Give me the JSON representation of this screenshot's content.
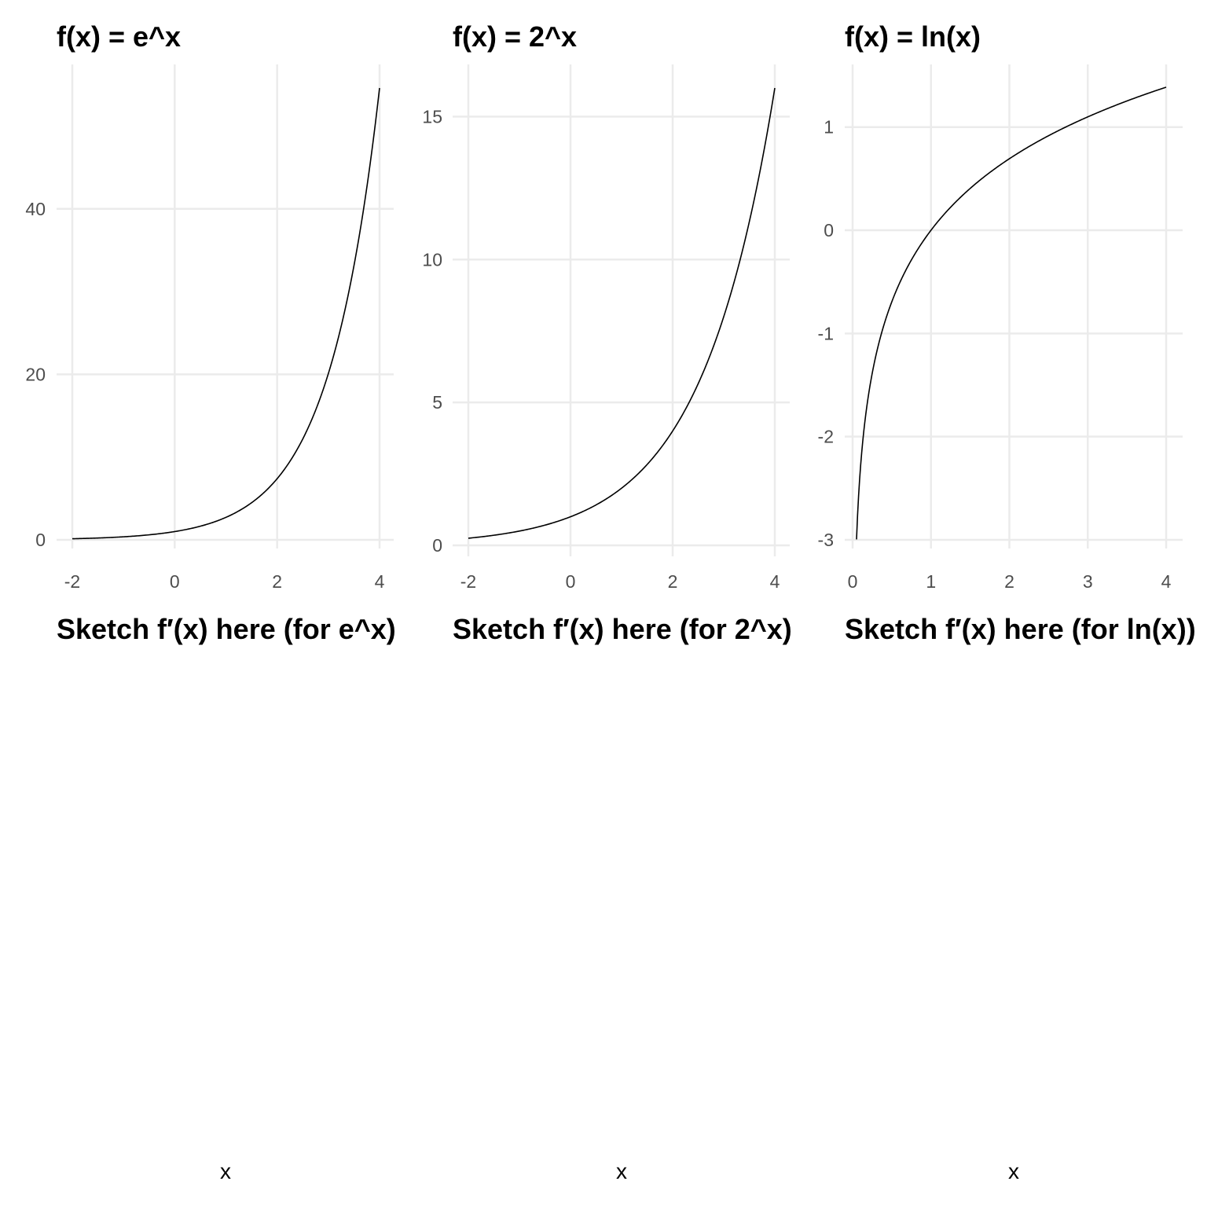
{
  "chart_data": [
    {
      "type": "line",
      "title": "f(x) = e^x",
      "function": "exp",
      "xlim": [
        -2,
        4
      ],
      "ylim": [
        0,
        54.6
      ],
      "x_ticks": [
        -2,
        0,
        2,
        4
      ],
      "x_tick_labels": [
        "-2",
        "0",
        "2",
        "4"
      ],
      "y_ticks": [
        0,
        20,
        40
      ],
      "y_tick_labels": [
        "0",
        "20",
        "40"
      ],
      "series": [
        {
          "x": [
            -2,
            -1,
            0,
            1,
            2,
            2.5,
            3,
            3.5,
            4
          ],
          "y": [
            0.135,
            0.368,
            1,
            2.718,
            7.389,
            12.18,
            20.09,
            33.12,
            54.6
          ]
        }
      ],
      "grid": true
    },
    {
      "type": "line",
      "title": "f(x) = 2^x",
      "function": "pow2",
      "xlim": [
        -2,
        4
      ],
      "ylim": [
        0,
        16
      ],
      "x_ticks": [
        -2,
        0,
        2,
        4
      ],
      "x_tick_labels": [
        "-2",
        "0",
        "2",
        "4"
      ],
      "y_ticks": [
        0,
        5,
        10,
        15
      ],
      "y_tick_labels": [
        "0",
        "5",
        "10",
        "15"
      ],
      "series": [
        {
          "x": [
            -2,
            -1,
            0,
            1,
            2,
            3,
            4
          ],
          "y": [
            0.25,
            0.5,
            1,
            2,
            4,
            8,
            16
          ]
        }
      ],
      "grid": true
    },
    {
      "type": "line",
      "title": "f(x) = ln(x)",
      "function": "ln",
      "xlim": [
        0.05,
        4
      ],
      "ylim": [
        -3,
        1.386
      ],
      "x_ticks": [
        0,
        1,
        2,
        3,
        4
      ],
      "x_tick_labels": [
        "0",
        "1",
        "2",
        "3",
        "4"
      ],
      "y_ticks": [
        -3,
        -2,
        -1,
        0,
        1
      ],
      "y_tick_labels": [
        "-3",
        "-2",
        "-1",
        "0",
        "1"
      ],
      "series": [
        {
          "x": [
            0.05,
            0.1,
            0.25,
            0.5,
            1,
            2,
            3,
            4
          ],
          "y": [
            -3.0,
            -2.303,
            -1.386,
            -0.693,
            0,
            0.693,
            1.099,
            1.386
          ]
        }
      ],
      "grid": true
    },
    {
      "type": "line",
      "title": "Sketch f′(x) here (for e^x)",
      "xlabel": "x",
      "series": []
    },
    {
      "type": "line",
      "title": "Sketch f′(x) here (for 2^x)",
      "xlabel": "x",
      "series": []
    },
    {
      "type": "line",
      "title": "Sketch f′(x) here (for ln(x))",
      "xlabel": "x",
      "series": []
    }
  ]
}
